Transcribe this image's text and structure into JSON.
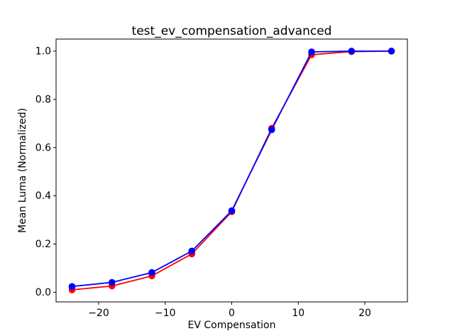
{
  "chart_data": {
    "type": "line",
    "title": "test_ev_compensation_advanced",
    "xlabel": "EV Compensation",
    "ylabel": "Mean Luma (Normalized)",
    "x": [
      -24,
      -18,
      -12,
      -6,
      0,
      6,
      12,
      18,
      24
    ],
    "series": [
      {
        "name": "red",
        "color": "#ff0000",
        "marker": "o",
        "values": [
          0.01,
          0.026,
          0.068,
          0.159,
          0.334,
          0.68,
          0.985,
          0.998,
          1.0
        ]
      },
      {
        "name": "blue",
        "color": "#0000ff",
        "marker": "o",
        "values": [
          0.024,
          0.041,
          0.082,
          0.171,
          0.338,
          0.674,
          0.997,
          1.0,
          1.0
        ]
      }
    ],
    "xlim": [
      -26.4,
      26.4
    ],
    "ylim": [
      -0.04,
      1.05
    ],
    "xticks": {
      "values": [
        -20,
        -10,
        0,
        10,
        20
      ],
      "labels": [
        "−20",
        "−10",
        "0",
        "10",
        "20"
      ]
    },
    "yticks": {
      "values": [
        0.0,
        0.2,
        0.4,
        0.6,
        0.8,
        1.0
      ],
      "labels": [
        "0.0",
        "0.2",
        "0.4",
        "0.6",
        "0.8",
        "1.0"
      ]
    },
    "grid": false,
    "legend": null,
    "frame_color": "#000000",
    "background": "#ffffff"
  }
}
